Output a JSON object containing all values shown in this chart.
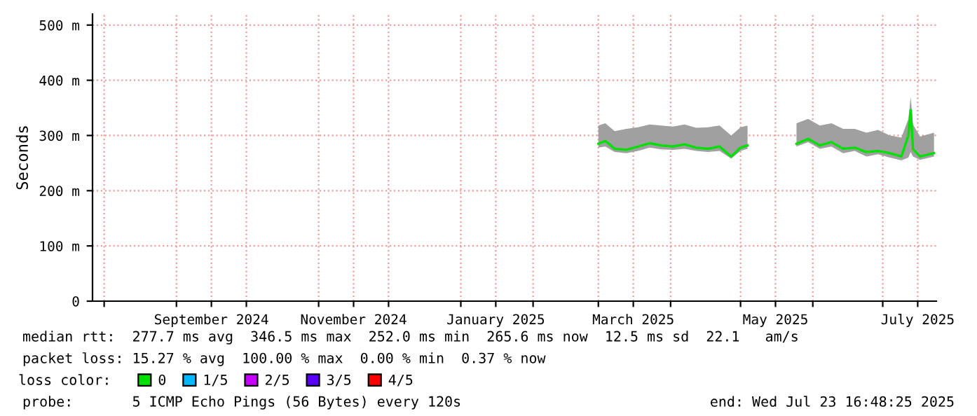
{
  "chart_data": {
    "type": "line",
    "ylabel": "Seconds",
    "legend_title": "loss color:",
    "legend": "bottom",
    "grid": true,
    "marker": "none",
    "line_style": "solid",
    "xlim": [
      "2024-07-27",
      "2025-07-24"
    ],
    "ylim": [
      0,
      520
    ],
    "yticks": [
      0,
      {
        "value": 100,
        "label": "100 m"
      },
      {
        "value": 200,
        "label": "200 m"
      },
      {
        "value": 300,
        "label": "300 m"
      },
      {
        "value": 400,
        "label": "400 m"
      },
      {
        "value": 500,
        "label": "500 m"
      }
    ],
    "xticks": [
      {
        "value": "2024-08-01",
        "label": null
      },
      {
        "value": "2024-09-01",
        "label": null
      },
      {
        "value": "2024-09-16",
        "label": "September 2024"
      },
      {
        "value": "2024-10-01",
        "label": null
      },
      {
        "value": "2024-11-01",
        "label": null
      },
      {
        "value": "2024-11-16",
        "label": "November 2024"
      },
      {
        "value": "2024-12-01",
        "label": null
      },
      {
        "value": "2025-01-01",
        "label": null
      },
      {
        "value": "2025-01-16",
        "label": "January 2025"
      },
      {
        "value": "2025-02-01",
        "label": null
      },
      {
        "value": "2025-03-01",
        "label": null
      },
      {
        "value": "2025-03-16",
        "label": "March 2025"
      },
      {
        "value": "2025-04-01",
        "label": null
      },
      {
        "value": "2025-05-01",
        "label": null
      },
      {
        "value": "2025-05-16",
        "label": "May 2025"
      },
      {
        "value": "2025-06-01",
        "label": null
      },
      {
        "value": "2025-07-01",
        "label": null
      },
      {
        "value": "2025-07-16",
        "label": "July 2025"
      }
    ],
    "x": [
      "2025-03-01",
      "2025-03-04",
      "2025-03-08",
      "2025-03-13",
      "2025-03-18",
      "2025-03-23",
      "2025-03-28",
      "2025-04-02",
      "2025-04-07",
      "2025-04-12",
      "2025-04-17",
      "2025-04-22",
      "2025-04-27",
      "2025-05-01",
      "2025-05-04",
      "2025-05-15",
      "2025-05-25",
      "2025-05-30",
      "2025-06-04",
      "2025-06-09",
      "2025-06-14",
      "2025-06-19",
      "2025-06-24",
      "2025-06-29",
      "2025-07-04",
      "2025-07-09",
      "2025-07-12",
      "2025-07-13",
      "2025-07-14",
      "2025-07-17",
      "2025-07-23"
    ],
    "series": [
      {
        "name": "0",
        "color": "#00e000",
        "values": [
          285,
          290,
          276,
          274,
          280,
          286,
          282,
          280,
          284,
          278,
          276,
          280,
          262,
          278,
          282,
          null,
          285,
          294,
          282,
          288,
          276,
          278,
          270,
          272,
          268,
          262,
          300,
          346,
          275,
          262,
          268
        ],
        "lower": [
          278,
          280,
          270,
          268,
          272,
          278,
          275,
          274,
          276,
          272,
          270,
          272,
          258,
          272,
          276,
          null,
          280,
          288,
          276,
          280,
          268,
          272,
          262,
          266,
          260,
          255,
          260,
          270,
          262,
          256,
          262
        ],
        "upper": [
          318,
          322,
          308,
          312,
          315,
          320,
          318,
          316,
          320,
          314,
          315,
          318,
          300,
          315,
          318,
          null,
          322,
          330,
          318,
          322,
          312,
          312,
          305,
          310,
          300,
          296,
          330,
          370,
          320,
          298,
          305
        ]
      },
      {
        "name": "1/5",
        "color": "#00b8ff",
        "values": [
          null,
          null,
          null,
          null,
          null,
          null,
          null,
          null,
          null,
          null,
          null,
          null,
          null,
          null,
          null,
          null,
          null,
          null,
          null,
          null,
          null,
          null,
          null,
          null,
          null,
          null,
          null,
          null,
          null,
          null,
          null
        ]
      },
      {
        "name": "2/5",
        "color": "#c800ff",
        "values": [
          null,
          null,
          null,
          null,
          null,
          null,
          null,
          null,
          null,
          null,
          null,
          null,
          null,
          null,
          null,
          null,
          null,
          null,
          null,
          null,
          null,
          null,
          null,
          null,
          null,
          null,
          null,
          null,
          null,
          null,
          null
        ]
      },
      {
        "name": "3/5",
        "color": "#5a00ff",
        "values": [
          null,
          null,
          null,
          null,
          null,
          null,
          null,
          null,
          null,
          null,
          null,
          null,
          null,
          null,
          null,
          null,
          null,
          null,
          null,
          null,
          null,
          null,
          null,
          null,
          null,
          null,
          null,
          null,
          null,
          null,
          null
        ]
      },
      {
        "name": "4/5",
        "color": "#ff0000",
        "values": [
          null,
          null,
          null,
          null,
          null,
          null,
          null,
          null,
          null,
          null,
          null,
          null,
          null,
          null,
          null,
          null,
          null,
          null,
          null,
          null,
          null,
          null,
          null,
          null,
          null,
          null,
          null,
          null,
          null,
          null,
          null
        ]
      }
    ],
    "annotations": [
      "median rtt:  277.7 ms avg  346.5 ms max  252.0 ms min  265.6 ms now  12.5 ms sd  22.1   am/s",
      "packet loss: 15.27 % avg  100.00 % max  0.00 % min  0.37 % now",
      "probe:       5 ICMP Echo Pings (56 Bytes) every 120s",
      "end: Wed Jul 23 16:48:25 2025"
    ]
  }
}
